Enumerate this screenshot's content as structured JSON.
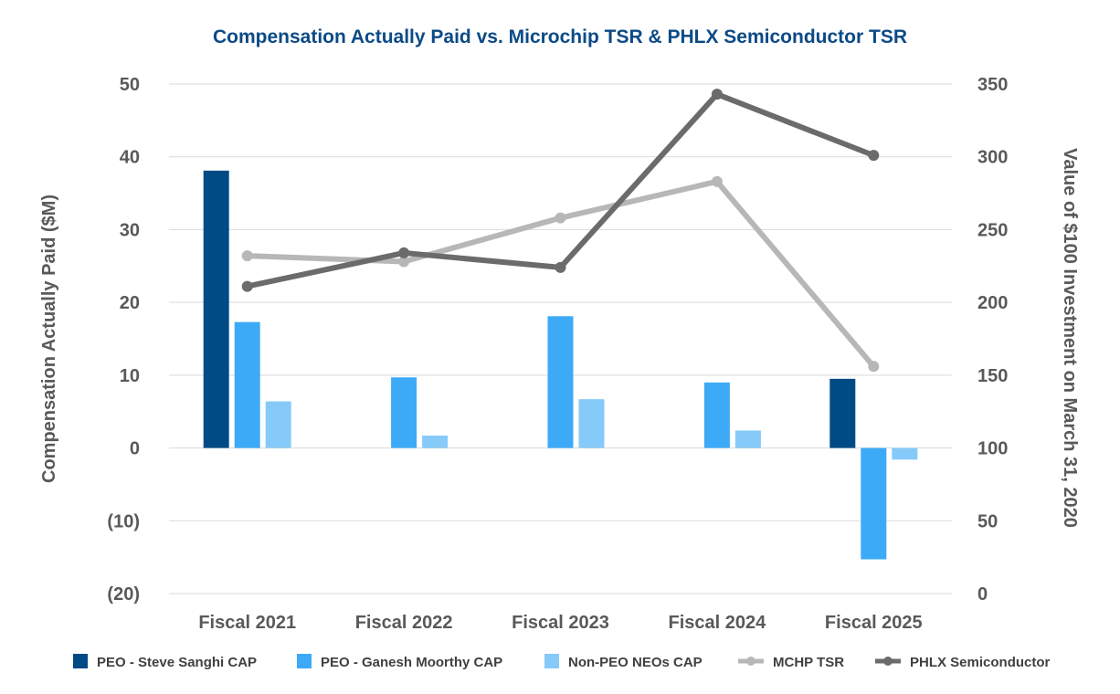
{
  "chart_data": {
    "type": "bar",
    "title": "Compensation Actually Paid vs. Microchip TSR & PHLX Semiconductor TSR",
    "title_color": "#0c4a86",
    "categories": [
      "Fiscal 2021",
      "Fiscal 2022",
      "Fiscal 2023",
      "Fiscal 2024",
      "Fiscal 2025"
    ],
    "ylabel": "Compensation Actually Paid ($M)",
    "y2label": "Value of $100 Investment on March 31, 2020",
    "ylim": [
      -20,
      50
    ],
    "y2lim": [
      0,
      350
    ],
    "yticks": [
      50,
      40,
      30,
      20,
      10,
      0,
      -10,
      -20
    ],
    "ytick_labels": [
      "50",
      "40",
      "30",
      "20",
      "10",
      "0",
      "(10)",
      "(20)"
    ],
    "y2ticks": [
      350,
      300,
      250,
      200,
      150,
      100,
      50,
      0
    ],
    "y2tick_labels": [
      "350",
      "300",
      "250",
      "200",
      "150",
      "100",
      "50",
      "0"
    ],
    "grid": true,
    "legend_position": "bottom",
    "bar_series": [
      {
        "name": "PEO - Steve Sanghi CAP",
        "color": "#004a85",
        "values": [
          38.1,
          null,
          null,
          null,
          9.5
        ]
      },
      {
        "name": "PEO - Ganesh Moorthy CAP",
        "color": "#3daaf7",
        "values": [
          17.3,
          9.7,
          18.1,
          9.0,
          -15.3
        ]
      },
      {
        "name": "Non-PEO NEOs CAP",
        "color": "#85caf9",
        "values": [
          6.4,
          1.7,
          6.7,
          2.4,
          -1.6
        ]
      }
    ],
    "line_series": [
      {
        "name": "MCHP TSR",
        "color": "#b7b7b7",
        "values": [
          232,
          228,
          258,
          283,
          156
        ]
      },
      {
        "name": "PHLX Semiconductor",
        "color": "#6b6b6b",
        "values": [
          211,
          234,
          224,
          343,
          301
        ]
      }
    ]
  }
}
